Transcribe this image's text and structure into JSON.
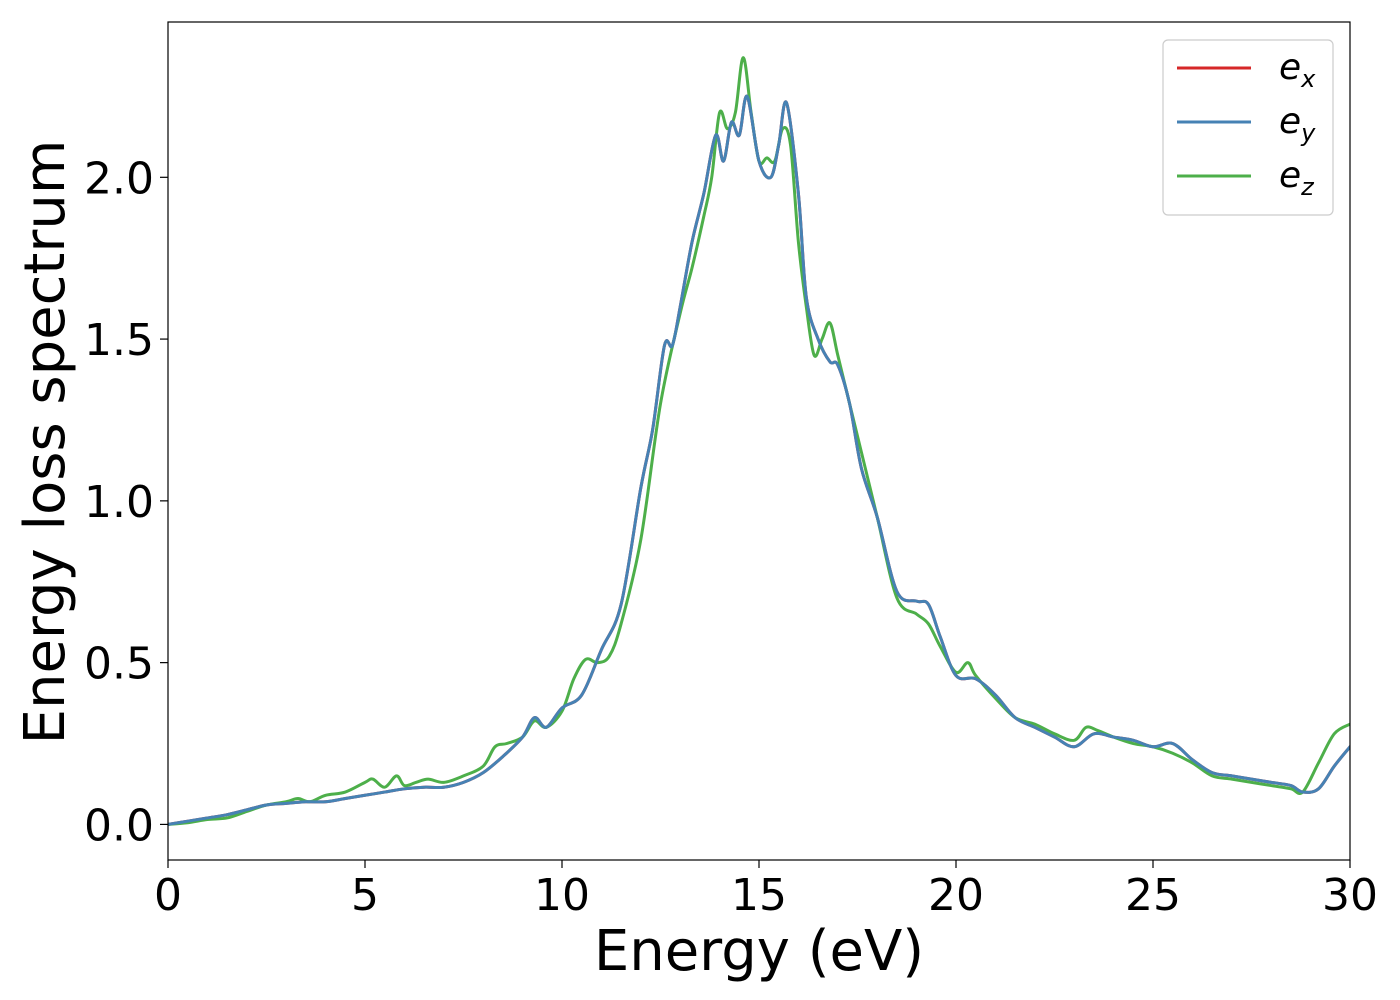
{
  "chart_data": {
    "type": "line",
    "title": "",
    "xlabel": "Energy (eV)",
    "ylabel": "Energy loss spectrum",
    "xlim": [
      0,
      30
    ],
    "ylim": [
      -0.11,
      2.48
    ],
    "xticks": [
      0,
      5,
      10,
      15,
      20,
      25,
      30
    ],
    "xtick_labels": [
      "0",
      "5",
      "10",
      "15",
      "20",
      "25",
      "30"
    ],
    "yticks": [
      0.0,
      0.5,
      1.0,
      1.5,
      2.0
    ],
    "ytick_labels": [
      "0.0",
      "0.5",
      "1.0",
      "1.5",
      "2.0"
    ],
    "grid": false,
    "legend_position": "top-right",
    "series": [
      {
        "name": "e_x",
        "label_base": "e",
        "label_sub": "x",
        "color": "#d62728",
        "x": [
          0,
          0.5,
          1,
          1.5,
          2,
          2.5,
          3,
          3.5,
          4,
          4.5,
          5,
          5.5,
          6,
          6.5,
          7,
          7.5,
          8,
          8.5,
          9,
          9.3,
          9.6,
          10,
          10.5,
          11,
          11.5,
          12,
          12.3,
          12.6,
          12.8,
          13,
          13.3,
          13.6,
          13.9,
          14.1,
          14.3,
          14.5,
          14.7,
          15,
          15.3,
          15.5,
          15.7,
          16,
          16.2,
          16.5,
          16.8,
          17,
          17.3,
          17.6,
          18,
          18.5,
          19,
          19.3,
          19.6,
          20,
          20.5,
          21,
          21.5,
          22,
          22.5,
          23,
          23.5,
          24,
          24.5,
          25,
          25.5,
          26,
          26.5,
          27,
          27.5,
          28,
          28.5,
          28.8,
          29.2,
          29.6,
          30
        ],
        "y": [
          0.0,
          0.01,
          0.02,
          0.03,
          0.045,
          0.06,
          0.065,
          0.07,
          0.07,
          0.08,
          0.09,
          0.1,
          0.11,
          0.115,
          0.115,
          0.13,
          0.16,
          0.21,
          0.27,
          0.33,
          0.3,
          0.36,
          0.4,
          0.54,
          0.68,
          1.04,
          1.22,
          1.48,
          1.48,
          1.6,
          1.8,
          1.95,
          2.13,
          2.05,
          2.17,
          2.13,
          2.25,
          2.05,
          2.0,
          2.1,
          2.23,
          1.95,
          1.63,
          1.5,
          1.43,
          1.42,
          1.3,
          1.1,
          0.95,
          0.72,
          0.69,
          0.68,
          0.58,
          0.46,
          0.45,
          0.4,
          0.33,
          0.3,
          0.27,
          0.24,
          0.28,
          0.27,
          0.26,
          0.24,
          0.25,
          0.2,
          0.16,
          0.15,
          0.14,
          0.13,
          0.12,
          0.1,
          0.11,
          0.18,
          0.24
        ]
      },
      {
        "name": "e_y",
        "label_base": "e",
        "label_sub": "y",
        "color": "#4682b4",
        "x": [
          0,
          0.5,
          1,
          1.5,
          2,
          2.5,
          3,
          3.5,
          4,
          4.5,
          5,
          5.5,
          6,
          6.5,
          7,
          7.5,
          8,
          8.5,
          9,
          9.3,
          9.6,
          10,
          10.5,
          11,
          11.5,
          12,
          12.3,
          12.6,
          12.8,
          13,
          13.3,
          13.6,
          13.9,
          14.1,
          14.3,
          14.5,
          14.7,
          15,
          15.3,
          15.5,
          15.7,
          16,
          16.2,
          16.5,
          16.8,
          17,
          17.3,
          17.6,
          18,
          18.5,
          19,
          19.3,
          19.6,
          20,
          20.5,
          21,
          21.5,
          22,
          22.5,
          23,
          23.5,
          24,
          24.5,
          25,
          25.5,
          26,
          26.5,
          27,
          27.5,
          28,
          28.5,
          28.8,
          29.2,
          29.6,
          30
        ],
        "y": [
          0.0,
          0.01,
          0.02,
          0.03,
          0.045,
          0.06,
          0.065,
          0.07,
          0.07,
          0.08,
          0.09,
          0.1,
          0.11,
          0.115,
          0.115,
          0.13,
          0.16,
          0.21,
          0.27,
          0.33,
          0.3,
          0.36,
          0.4,
          0.54,
          0.68,
          1.04,
          1.22,
          1.48,
          1.48,
          1.6,
          1.8,
          1.95,
          2.13,
          2.05,
          2.17,
          2.13,
          2.25,
          2.05,
          2.0,
          2.1,
          2.23,
          1.95,
          1.63,
          1.5,
          1.43,
          1.42,
          1.3,
          1.1,
          0.95,
          0.72,
          0.69,
          0.68,
          0.58,
          0.46,
          0.45,
          0.4,
          0.33,
          0.3,
          0.27,
          0.24,
          0.28,
          0.27,
          0.26,
          0.24,
          0.25,
          0.2,
          0.16,
          0.15,
          0.14,
          0.13,
          0.12,
          0.1,
          0.11,
          0.18,
          0.24
        ]
      },
      {
        "name": "e_z",
        "label_base": "e",
        "label_sub": "z",
        "color": "#4daf4a",
        "x": [
          0,
          0.5,
          1,
          1.5,
          2,
          2.5,
          3,
          3.3,
          3.6,
          4,
          4.5,
          5,
          5.2,
          5.5,
          5.8,
          6,
          6.3,
          6.6,
          7,
          7.5,
          8,
          8.3,
          8.6,
          9,
          9.3,
          9.6,
          10,
          10.3,
          10.6,
          10.9,
          11.2,
          11.5,
          12,
          12.5,
          13,
          13.3,
          13.6,
          13.8,
          14.0,
          14.2,
          14.4,
          14.6,
          14.8,
          15,
          15.2,
          15.4,
          15.6,
          15.8,
          16,
          16.2,
          16.4,
          16.6,
          16.8,
          17,
          17.3,
          17.6,
          18,
          18.5,
          19,
          19.3,
          19.6,
          20,
          20.3,
          20.5,
          21,
          21.5,
          22,
          22.5,
          23,
          23.3,
          23.6,
          24,
          24.5,
          25,
          25.5,
          26,
          26.5,
          27,
          27.5,
          28,
          28.5,
          28.8,
          29.2,
          29.6,
          30
        ],
        "y": [
          0.0,
          0.005,
          0.015,
          0.02,
          0.04,
          0.06,
          0.07,
          0.08,
          0.07,
          0.09,
          0.1,
          0.13,
          0.14,
          0.115,
          0.15,
          0.12,
          0.13,
          0.14,
          0.13,
          0.15,
          0.18,
          0.24,
          0.25,
          0.27,
          0.32,
          0.3,
          0.35,
          0.45,
          0.51,
          0.5,
          0.52,
          0.62,
          0.88,
          1.3,
          1.58,
          1.72,
          1.88,
          2.0,
          2.2,
          2.15,
          2.2,
          2.37,
          2.2,
          2.05,
          2.06,
          2.05,
          2.15,
          2.1,
          1.8,
          1.6,
          1.45,
          1.5,
          1.55,
          1.45,
          1.3,
          1.15,
          0.95,
          0.7,
          0.65,
          0.62,
          0.55,
          0.47,
          0.5,
          0.46,
          0.39,
          0.33,
          0.31,
          0.28,
          0.26,
          0.3,
          0.29,
          0.27,
          0.25,
          0.24,
          0.22,
          0.19,
          0.15,
          0.14,
          0.13,
          0.12,
          0.11,
          0.1,
          0.19,
          0.28,
          0.31
        ]
      }
    ]
  }
}
